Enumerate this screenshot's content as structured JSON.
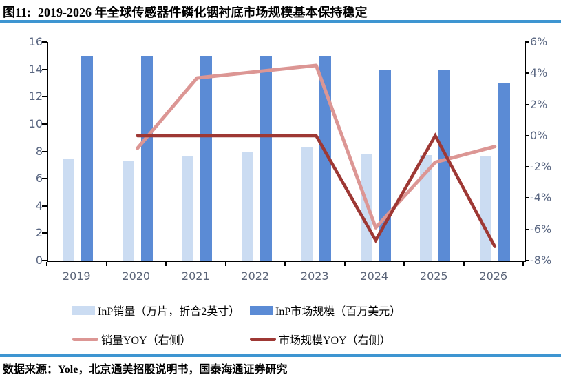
{
  "header": {
    "figure_label": "图11:",
    "title": "2019-2026 年全球传感器件磷化铟衬底市场规模基本保持稳定"
  },
  "footer": {
    "source": "数据来源：Yole，北京通美招股说明书，国泰海通证券研究"
  },
  "colors": {
    "accent_rule": "#3E95D1",
    "axis_line": "#000000",
    "axis_label": "#5A6782",
    "bar_sales": "#CBDCF2",
    "bar_market": "#5B8BD5",
    "line_sales_yoy": "#DC9694",
    "line_market_yoy": "#9E3834"
  },
  "chart_data": {
    "type": "bar",
    "subtype": "bar-line-combo",
    "title": "2019-2026 年全球传感器件磷化铟衬底市场规模基本保持稳定",
    "categories": [
      "2019",
      "2020",
      "2021",
      "2022",
      "2023",
      "2024",
      "2025",
      "2026"
    ],
    "left_axis": {
      "min": 0,
      "max": 16,
      "ticks": [
        16,
        14,
        12,
        10,
        8,
        6,
        4,
        2,
        0
      ]
    },
    "right_axis": {
      "min": -8,
      "max": 6,
      "ticks": [
        "6%",
        "4%",
        "2%",
        "0%",
        "-2%",
        "-4%",
        "-6%",
        "-8%"
      ]
    },
    "grid": false,
    "legend_position": "bottom",
    "series": [
      {
        "name": "InP销量（万片，折合2英寸）",
        "type": "bar",
        "axis": "left",
        "color": "#CBDCF2",
        "values": [
          7.4,
          7.3,
          7.6,
          7.9,
          8.3,
          7.8,
          7.7,
          7.6
        ]
      },
      {
        "name": "InP市场规模（百万美元）",
        "type": "bar",
        "axis": "left",
        "color": "#5B8BD5",
        "values": [
          15,
          15,
          15,
          15,
          15,
          14,
          14,
          13
        ]
      },
      {
        "name": "销量YOY（右侧）",
        "type": "line",
        "axis": "right",
        "unit": "%",
        "color": "#DC9694",
        "values": [
          null,
          -0.8,
          3.7,
          4.1,
          4.5,
          -5.9,
          -1.7,
          -0.7
        ]
      },
      {
        "name": "市场规模YOY（右侧）",
        "type": "line",
        "axis": "right",
        "unit": "%",
        "color": "#9E3834",
        "values": [
          null,
          0,
          0,
          0,
          0,
          -6.7,
          0,
          -7.1
        ]
      }
    ]
  },
  "legend": {
    "items": [
      {
        "label": "InP销量（万片，折合2英寸）",
        "swatch": "bar",
        "color": "#CBDCF2"
      },
      {
        "label": "InP市场规模（百万美元）",
        "swatch": "bar",
        "color": "#5B8BD5"
      },
      {
        "label": "销量YOY（右侧）",
        "swatch": "line",
        "color": "#DC9694"
      },
      {
        "label": "市场规模YOY（右侧）",
        "swatch": "line",
        "color": "#9E3834"
      }
    ]
  }
}
